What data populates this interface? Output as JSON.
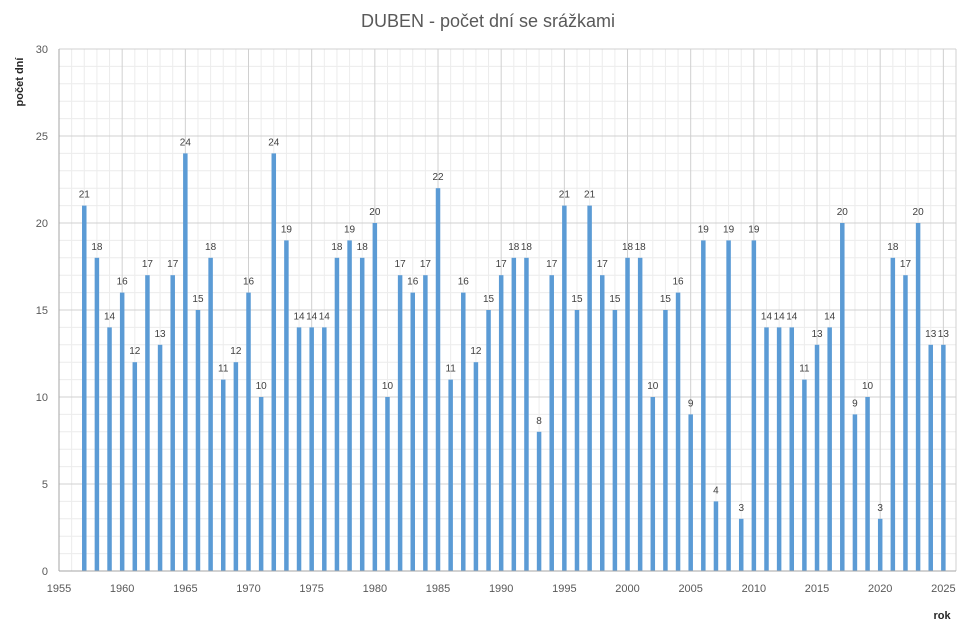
{
  "chart_data": {
    "type": "bar",
    "title": "DUBEN - počet dní se srážkami",
    "xlabel": "rok",
    "ylabel": "počet dní",
    "xlim": [
      1955,
      2026
    ],
    "ylim": [
      0,
      30
    ],
    "x_ticks": [
      "1955",
      "1960",
      "1965",
      "1970",
      "1975",
      "1980",
      "1985",
      "1990",
      "1995",
      "2000",
      "2005",
      "2010",
      "2015",
      "2020",
      "2025"
    ],
    "y_ticks": [
      "0",
      "5",
      "10",
      "15",
      "20",
      "25",
      "30"
    ],
    "grid": true,
    "legend": "none",
    "bar_color": "#5b9bd5",
    "x": [
      1957,
      1958,
      1959,
      1960,
      1961,
      1962,
      1963,
      1964,
      1965,
      1966,
      1967,
      1968,
      1969,
      1970,
      1971,
      1972,
      1973,
      1974,
      1975,
      1976,
      1977,
      1978,
      1979,
      1980,
      1981,
      1982,
      1983,
      1984,
      1985,
      1986,
      1987,
      1988,
      1989,
      1990,
      1991,
      1992,
      1993,
      1994,
      1995,
      1996,
      1997,
      1998,
      1999,
      2000,
      2001,
      2002,
      2003,
      2004,
      2005,
      2006,
      2007,
      2008,
      2009,
      2010,
      2011,
      2012,
      2013,
      2014,
      2015,
      2016,
      2017,
      2018,
      2019,
      2020,
      2021,
      2022,
      2023,
      2024,
      2025
    ],
    "values": [
      21,
      18,
      14,
      16,
      12,
      17,
      13,
      17,
      24,
      15,
      18,
      11,
      12,
      16,
      10,
      24,
      19,
      14,
      14,
      14,
      18,
      19,
      18,
      20,
      10,
      17,
      16,
      17,
      22,
      11,
      16,
      12,
      15,
      17,
      18,
      18,
      8,
      17,
      21,
      15,
      21,
      17,
      15,
      18,
      18,
      10,
      15,
      16,
      9,
      19,
      4,
      19,
      3,
      19,
      14,
      14,
      14,
      11,
      13,
      14,
      20,
      9,
      10,
      3,
      18,
      17,
      20,
      13,
      13
    ]
  }
}
